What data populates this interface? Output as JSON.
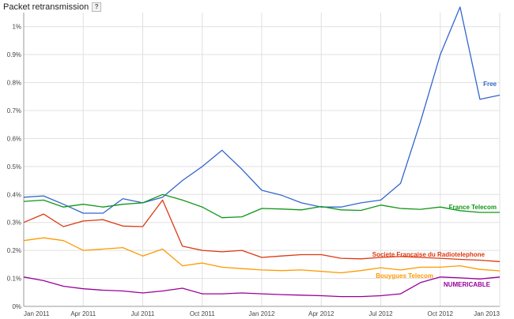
{
  "chart_data": {
    "type": "line",
    "title": "Packet retransmission",
    "help_icon": "help-icon",
    "xlabel": "",
    "ylabel": "",
    "ylim": [
      0,
      1.05
    ],
    "grid": true,
    "y_ticks": [
      "0%",
      "0.1%",
      "0.2%",
      "0.3%",
      "0.4%",
      "0.5%",
      "0.6%",
      "0.7%",
      "0.8%",
      "0.9%",
      "1%"
    ],
    "y_tick_values": [
      0,
      0.1,
      0.2,
      0.3,
      0.4,
      0.5,
      0.6,
      0.7,
      0.8,
      0.9,
      1.0
    ],
    "x_tick_labels": [
      "Jan 2011",
      "Apr 2011",
      "Jul 2011",
      "Oct 2011",
      "Jan 2012",
      "Apr 2012",
      "Jul 2012",
      "Oct 2012",
      "Jan 2013"
    ],
    "x_tick_index": [
      0,
      3,
      6,
      9,
      12,
      15,
      18,
      21,
      24
    ],
    "x": [
      "Jan 2011",
      "Feb 2011",
      "Mar 2011",
      "Apr 2011",
      "May 2011",
      "Jun 2011",
      "Jul 2011",
      "Aug 2011",
      "Sep 2011",
      "Oct 2011",
      "Nov 2011",
      "Dec 2011",
      "Jan 2012",
      "Feb 2012",
      "Mar 2012",
      "Apr 2012",
      "May 2012",
      "Jun 2012",
      "Jul 2012",
      "Aug 2012",
      "Sep 2012",
      "Oct 2012",
      "Nov 2012",
      "Dec 2012",
      "Jan 2013"
    ],
    "series": [
      {
        "name": "Free",
        "color": "#3366cc",
        "values": [
          0.39,
          0.395,
          0.365,
          0.333,
          0.333,
          0.385,
          0.37,
          0.39,
          0.45,
          0.5,
          0.558,
          0.49,
          0.415,
          0.397,
          0.37,
          0.355,
          0.355,
          0.37,
          0.38,
          0.44,
          0.66,
          0.9,
          1.07,
          0.74,
          0.755
        ]
      },
      {
        "name": "France Telecom",
        "color": "#109618",
        "values": [
          0.375,
          0.38,
          0.355,
          0.365,
          0.355,
          0.365,
          0.37,
          0.4,
          0.38,
          0.355,
          0.317,
          0.32,
          0.35,
          0.348,
          0.345,
          0.357,
          0.345,
          0.343,
          0.362,
          0.35,
          0.347,
          0.355,
          0.342,
          0.336,
          0.336
        ]
      },
      {
        "name": "Societe Francaise du Radiotelephone",
        "color": "#dc3912",
        "values": [
          0.3,
          0.33,
          0.285,
          0.305,
          0.31,
          0.287,
          0.285,
          0.38,
          0.215,
          0.2,
          0.195,
          0.2,
          0.175,
          0.18,
          0.185,
          0.185,
          0.172,
          0.17,
          0.175,
          0.178,
          0.175,
          0.172,
          0.168,
          0.165,
          0.16
        ]
      },
      {
        "name": "Bouygues Telecom",
        "color": "#ff9900",
        "values": [
          0.235,
          0.245,
          0.235,
          0.2,
          0.205,
          0.21,
          0.18,
          0.205,
          0.145,
          0.155,
          0.14,
          0.135,
          0.13,
          0.128,
          0.13,
          0.125,
          0.12,
          0.128,
          0.138,
          0.13,
          0.14,
          0.14,
          0.145,
          0.132,
          0.127
        ]
      },
      {
        "name": "NUMERICABLE",
        "color": "#990099",
        "values": [
          0.105,
          0.092,
          0.072,
          0.063,
          0.058,
          0.055,
          0.048,
          0.055,
          0.065,
          0.045,
          0.045,
          0.048,
          0.045,
          0.042,
          0.04,
          0.038,
          0.035,
          0.035,
          0.038,
          0.045,
          0.085,
          0.105,
          0.102,
          0.098,
          0.105
        ]
      }
    ]
  }
}
